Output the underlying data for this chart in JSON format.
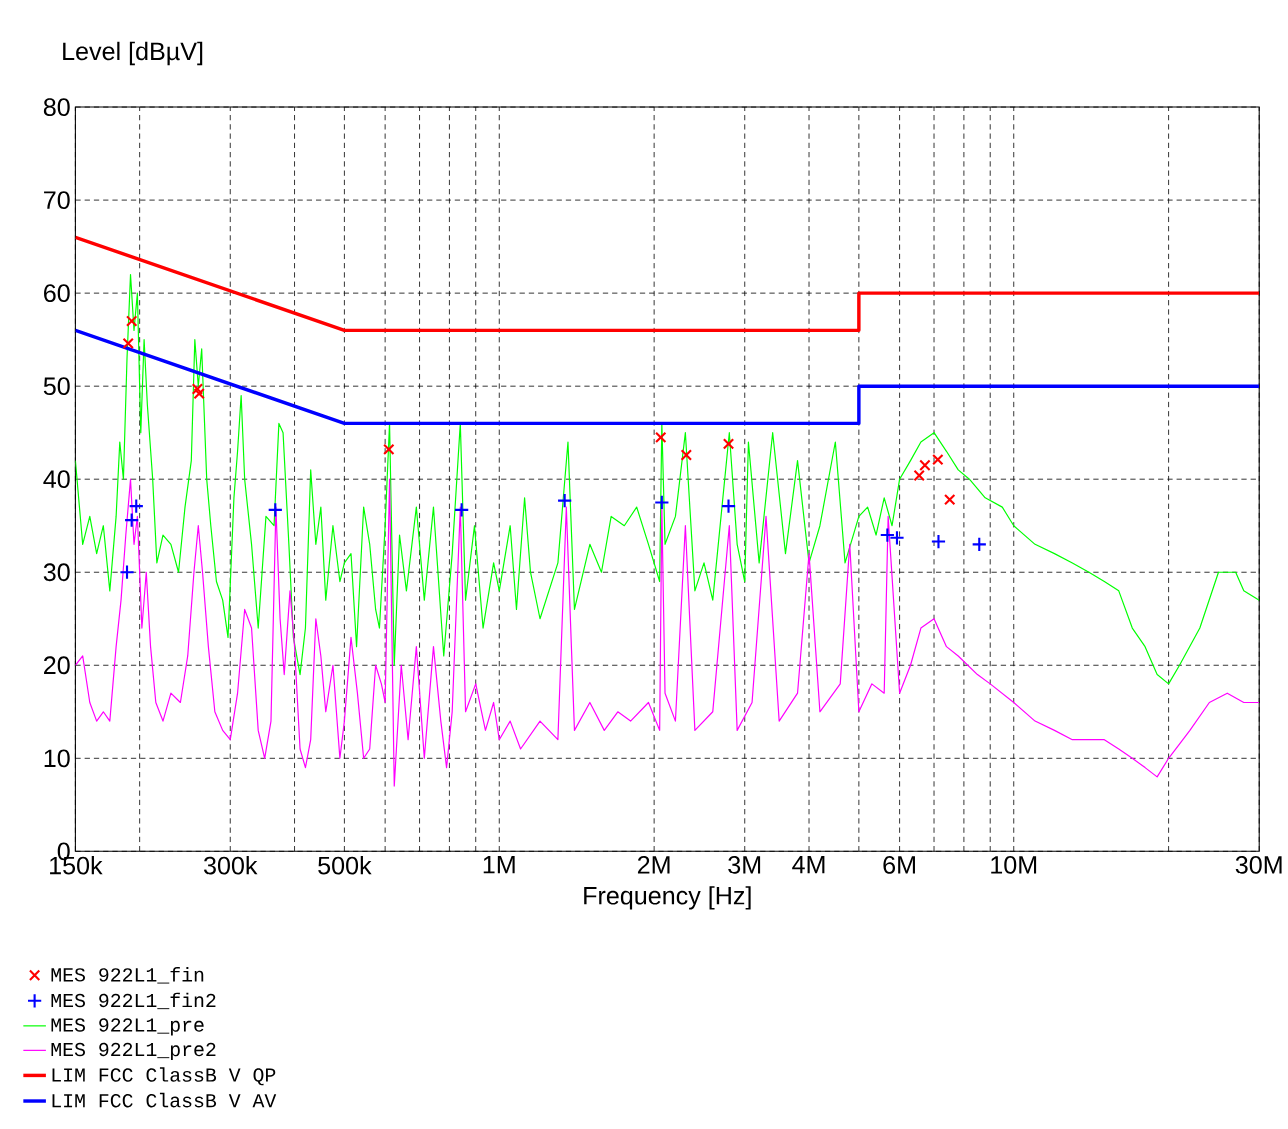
{
  "chart_data": {
    "type": "line",
    "xlabel": "Frequency [Hz]",
    "ylabel": "Level [dBµV]",
    "log": "x",
    "grid": true,
    "legend": "bottom",
    "xlim": [
      150000,
      30000000
    ],
    "ylim": [
      0,
      80
    ],
    "yticks": [
      0,
      10,
      20,
      30,
      40,
      50,
      60,
      70,
      80
    ],
    "xticks": [
      {
        "value": 150000,
        "label": "150k"
      },
      {
        "value": 200000,
        "label": null
      },
      {
        "value": 300000,
        "label": "300k"
      },
      {
        "value": 400000,
        "label": null
      },
      {
        "value": 500000,
        "label": "500k"
      },
      {
        "value": 600000,
        "label": null
      },
      {
        "value": 700000,
        "label": null
      },
      {
        "value": 800000,
        "label": null
      },
      {
        "value": 900000,
        "label": null
      },
      {
        "value": 1000000,
        "label": "1M"
      },
      {
        "value": 2000000,
        "label": "2M"
      },
      {
        "value": 3000000,
        "label": "3M"
      },
      {
        "value": 4000000,
        "label": "4M"
      },
      {
        "value": 5000000,
        "label": null
      },
      {
        "value": 6000000,
        "label": "6M"
      },
      {
        "value": 7000000,
        "label": null
      },
      {
        "value": 8000000,
        "label": null
      },
      {
        "value": 9000000,
        "label": null
      },
      {
        "value": 10000000,
        "label": "10M"
      },
      {
        "value": 20000000,
        "label": null
      },
      {
        "value": 30000000,
        "label": "30M"
      }
    ],
    "series": [
      {
        "name": "MES 922L1_fin",
        "type": "scatter",
        "marker": "cross",
        "color": "#ff0000",
        "x": [
          190000,
          193000,
          259000,
          261000,
          610000,
          2060000,
          2310000,
          2790000,
          6550000,
          6720000,
          7120000,
          7510000
        ],
        "values": [
          54.6,
          57.0,
          49.7,
          49.2,
          43.2,
          44.5,
          42.6,
          43.8,
          40.4,
          41.5,
          42.1,
          37.8
        ]
      },
      {
        "name": "MES 922L1_fin2",
        "type": "scatter",
        "marker": "plus",
        "color": "#0000ff",
        "x": [
          189000,
          193000,
          197000,
          367000,
          845000,
          1340000,
          2070000,
          2790000,
          5680000,
          5930000,
          7140000,
          8570000
        ],
        "values": [
          30.0,
          35.6,
          37.1,
          36.7,
          36.7,
          37.7,
          37.5,
          37.1,
          34.0,
          33.7,
          33.3,
          33.0
        ]
      },
      {
        "name": "MES 922L1_pre",
        "color": "#00ff00",
        "x": [
          150000,
          155000,
          160000,
          165000,
          170000,
          175000,
          180000,
          183000,
          186000,
          189000,
          192000,
          195000,
          198000,
          201000,
          204000,
          207000,
          212000,
          216000,
          222000,
          230000,
          238000,
          245000,
          252000,
          256000,
          260000,
          264000,
          270000,
          275000,
          282000,
          290000,
          297000,
          305000,
          310000,
          315000,
          320000,
          330000,
          340000,
          352000,
          365000,
          373000,
          380000,
          390000,
          398000,
          410000,
          420000,
          430000,
          440000,
          450000,
          460000,
          475000,
          490000,
          500000,
          515000,
          528000,
          545000,
          560000,
          575000,
          585000,
          600000,
          612000,
          625000,
          640000,
          660000,
          690000,
          715000,
          745000,
          780000,
          810000,
          840000,
          860000,
          895000,
          930000,
          975000,
          1000000,
          1050000,
          1080000,
          1120000,
          1150000,
          1200000,
          1300000,
          1360000,
          1400000,
          1500000,
          1580000,
          1650000,
          1750000,
          1850000,
          1950000,
          2050000,
          2070000,
          2100000,
          2200000,
          2300000,
          2400000,
          2500000,
          2600000,
          2800000,
          2900000,
          3000000,
          3050000,
          3200000,
          3400000,
          3600000,
          3800000,
          4000000,
          4200000,
          4500000,
          4700000,
          5000000,
          5200000,
          5400000,
          5600000,
          5800000,
          6000000,
          6300000,
          6600000,
          7000000,
          7400000,
          7800000,
          8200000,
          8800000,
          9500000,
          10000000,
          11000000,
          12000000,
          13000000,
          14000000,
          15000000,
          16000000,
          17000000,
          18000000,
          19000000,
          20000000,
          21000000,
          23000000,
          25000000,
          27000000,
          28000000,
          30000000
        ],
        "values": [
          42,
          33,
          36,
          32,
          35,
          28,
          36,
          44,
          40,
          53,
          62,
          56,
          60,
          45,
          55,
          48,
          40,
          31,
          34,
          33,
          30,
          37,
          42,
          55,
          50,
          54,
          40,
          35,
          29,
          27,
          23,
          38,
          43,
          49,
          40,
          33,
          24,
          36,
          35,
          46,
          45,
          33,
          23,
          19,
          24,
          41,
          33,
          37,
          27,
          35,
          29,
          31,
          32,
          22,
          37,
          33,
          26,
          24,
          35,
          46,
          20,
          34,
          28,
          37,
          27,
          37,
          21,
          32,
          46,
          27,
          35,
          24,
          31,
          28,
          35,
          26,
          38,
          30,
          25,
          31,
          44,
          26,
          33,
          30,
          36,
          35,
          37,
          33,
          29,
          46,
          33,
          36,
          45,
          28,
          31,
          27,
          45,
          33,
          29,
          44,
          31,
          45,
          32,
          42,
          31,
          35,
          44,
          31,
          36,
          37,
          34,
          38,
          35,
          40,
          42,
          44,
          45,
          43,
          41,
          40,
          38,
          37,
          35,
          33,
          32,
          31,
          30,
          29,
          28,
          24,
          22,
          19,
          18,
          20,
          24,
          30,
          30,
          28,
          27
        ]
      },
      {
        "name": "MES 922L1_pre2",
        "color": "#ff00ff",
        "x": [
          150000,
          155000,
          160000,
          165000,
          170000,
          175000,
          180000,
          184000,
          188000,
          192000,
          195000,
          198000,
          202000,
          206000,
          210000,
          215000,
          222000,
          230000,
          240000,
          248000,
          255000,
          260000,
          265000,
          272000,
          280000,
          290000,
          300000,
          310000,
          320000,
          330000,
          340000,
          350000,
          360000,
          368000,
          375000,
          382000,
          392000,
          400000,
          410000,
          420000,
          430000,
          440000,
          450000,
          460000,
          475000,
          490000,
          500000,
          515000,
          530000,
          545000,
          560000,
          575000,
          590000,
          600000,
          612000,
          625000,
          645000,
          665000,
          690000,
          715000,
          745000,
          770000,
          790000,
          810000,
          840000,
          860000,
          900000,
          940000,
          975000,
          1000000,
          1050000,
          1100000,
          1200000,
          1300000,
          1350000,
          1400000,
          1500000,
          1600000,
          1700000,
          1800000,
          1950000,
          2050000,
          2070000,
          2100000,
          2200000,
          2300000,
          2400000,
          2600000,
          2800000,
          2900000,
          3100000,
          3300000,
          3500000,
          3800000,
          4000000,
          4200000,
          4600000,
          4800000,
          5000000,
          5300000,
          5600000,
          5700000,
          6000000,
          6300000,
          6600000,
          7000000,
          7400000,
          7800000,
          8500000,
          9000000,
          10000000,
          11000000,
          12000000,
          13000000,
          15000000,
          16000000,
          17000000,
          18000000,
          19000000,
          20000000,
          22000000,
          24000000,
          26000000,
          28000000,
          30000000
        ],
        "values": [
          20,
          21,
          16,
          14,
          15,
          14,
          22,
          27,
          34,
          40,
          33,
          36,
          24,
          30,
          22,
          16,
          14,
          17,
          16,
          21,
          30,
          35,
          30,
          22,
          15,
          13,
          12,
          17,
          26,
          24,
          13,
          10,
          14,
          37,
          25,
          19,
          28,
          22,
          11,
          9,
          12,
          25,
          21,
          15,
          20,
          10,
          14,
          23,
          17,
          10,
          11,
          20,
          18,
          16,
          40,
          7,
          20,
          12,
          22,
          10,
          22,
          14,
          9,
          15,
          37,
          15,
          18,
          13,
          16,
          12,
          14,
          11,
          14,
          12,
          37,
          13,
          16,
          13,
          15,
          14,
          16,
          13,
          37,
          17,
          14,
          35,
          13,
          15,
          35,
          13,
          16,
          36,
          14,
          17,
          32,
          15,
          18,
          33,
          15,
          18,
          17,
          36,
          17,
          20,
          24,
          25,
          22,
          21,
          19,
          18,
          16,
          14,
          13,
          12,
          12,
          11,
          10,
          9,
          8,
          10,
          13,
          16,
          17,
          16,
          16
        ]
      },
      {
        "name": "LIM FCC ClassB V QP",
        "color": "#ff0000",
        "x": [
          150000,
          500000,
          5000000,
          5000000,
          30000000
        ],
        "values": [
          66,
          56,
          56,
          60,
          60
        ]
      },
      {
        "name": "LIM FCC ClassB V AV",
        "color": "#0000ff",
        "x": [
          150000,
          500000,
          5000000,
          5000000,
          30000000
        ],
        "values": [
          56,
          46,
          46,
          50,
          50
        ]
      }
    ]
  }
}
